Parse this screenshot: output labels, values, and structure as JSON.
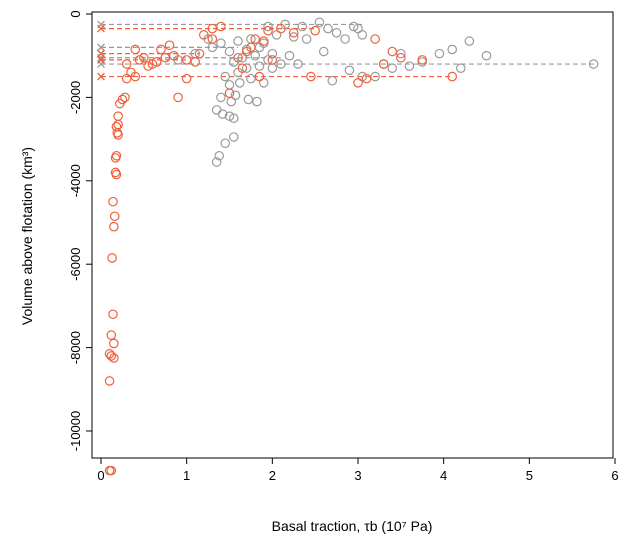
{
  "chart_data": {
    "type": "scatter",
    "xlabel": "Basal traction, τb (10⁷ Pa)",
    "ylabel": "Volume above flotation (km³)",
    "xlim": [
      0,
      6
    ],
    "ylim": [
      -11000,
      0
    ],
    "xticks": [
      "0",
      "1",
      "2",
      "3",
      "4",
      "5",
      "6"
    ],
    "yticks": [
      "0",
      "-2000",
      "-4000",
      "-6000",
      "-8000",
      "-10000"
    ],
    "grid": false,
    "legend": "none",
    "colors": {
      "orange": "#f0603a",
      "gray": "#9a9a9a",
      "gray_dark": "#6e6e6e"
    },
    "series": [
      {
        "color": "gray",
        "marker": "circle",
        "points": [
          [
            1.35,
            -3550
          ],
          [
            1.38,
            -3400
          ],
          [
            1.45,
            -3100
          ],
          [
            1.55,
            -2950
          ],
          [
            1.35,
            -2300
          ],
          [
            1.42,
            -2400
          ],
          [
            1.5,
            -2450
          ],
          [
            1.55,
            -2500
          ],
          [
            1.4,
            -2000
          ],
          [
            1.52,
            -2100
          ],
          [
            1.57,
            -1950
          ],
          [
            1.72,
            -2050
          ],
          [
            1.82,
            -2100
          ],
          [
            1.5,
            -1700
          ],
          [
            1.62,
            -1650
          ],
          [
            1.75,
            -1550
          ],
          [
            1.9,
            -1650
          ],
          [
            1.45,
            -1500
          ],
          [
            1.6,
            -1400
          ],
          [
            1.7,
            -1300
          ],
          [
            1.85,
            -1250
          ],
          [
            2.0,
            -1300
          ],
          [
            1.55,
            -1150
          ],
          [
            1.65,
            -1050
          ],
          [
            1.8,
            -1000
          ],
          [
            1.95,
            -1100
          ],
          [
            2.1,
            -1200
          ],
          [
            1.5,
            -900
          ],
          [
            1.7,
            -850
          ],
          [
            1.85,
            -800
          ],
          [
            2.0,
            -950
          ],
          [
            2.2,
            -1000
          ],
          [
            1.4,
            -700
          ],
          [
            1.6,
            -650
          ],
          [
            1.75,
            -600
          ],
          [
            1.9,
            -700
          ],
          [
            2.05,
            -500
          ],
          [
            2.25,
            -550
          ],
          [
            2.4,
            -600
          ],
          [
            1.95,
            -300
          ],
          [
            2.15,
            -250
          ],
          [
            2.35,
            -300
          ],
          [
            2.55,
            -200
          ],
          [
            2.65,
            -350
          ],
          [
            2.75,
            -450
          ],
          [
            2.95,
            -300
          ],
          [
            3.0,
            -350
          ],
          [
            2.6,
            -900
          ],
          [
            2.7,
            -1600
          ],
          [
            2.9,
            -1350
          ],
          [
            3.05,
            -1500
          ],
          [
            3.3,
            -1200
          ],
          [
            3.4,
            -1300
          ],
          [
            3.6,
            -1250
          ],
          [
            3.75,
            -1150
          ],
          [
            3.95,
            -950
          ],
          [
            4.1,
            -850
          ],
          [
            4.2,
            -1300
          ],
          [
            4.3,
            -650
          ],
          [
            4.5,
            -1000
          ],
          [
            5.75,
            -1200
          ],
          [
            3.2,
            -1500
          ],
          [
            2.85,
            -600
          ],
          [
            1.25,
            -600
          ],
          [
            1.3,
            -800
          ],
          [
            1.1,
            -950
          ],
          [
            2.3,
            -1200
          ],
          [
            3.5,
            -950
          ],
          [
            3.05,
            -500
          ],
          [
            0.9,
            -1100
          ]
        ]
      },
      {
        "color": "orange",
        "marker": "circle",
        "points": [
          [
            0.1,
            -10950
          ],
          [
            0.12,
            -10950
          ],
          [
            0.1,
            -8800
          ],
          [
            0.12,
            -8200
          ],
          [
            0.15,
            -8250
          ],
          [
            0.1,
            -8150
          ],
          [
            0.12,
            -7700
          ],
          [
            0.15,
            -7900
          ],
          [
            0.14,
            -7200
          ],
          [
            0.13,
            -5850
          ],
          [
            0.15,
            -5100
          ],
          [
            0.16,
            -4850
          ],
          [
            0.14,
            -4500
          ],
          [
            0.18,
            -3850
          ],
          [
            0.17,
            -3800
          ],
          [
            0.18,
            -3400
          ],
          [
            0.17,
            -3450
          ],
          [
            0.2,
            -2900
          ],
          [
            0.19,
            -2850
          ],
          [
            0.2,
            -2650
          ],
          [
            0.18,
            -2700
          ],
          [
            0.2,
            -2450
          ],
          [
            0.22,
            -2150
          ],
          [
            0.25,
            -2050
          ],
          [
            0.28,
            -2000
          ],
          [
            0.3,
            -1550
          ],
          [
            0.35,
            -1400
          ],
          [
            0.4,
            -1500
          ],
          [
            0.45,
            -1100
          ],
          [
            0.55,
            -1250
          ],
          [
            0.65,
            -1150
          ],
          [
            0.75,
            -1050
          ],
          [
            0.85,
            -1000
          ],
          [
            1.0,
            -1100
          ],
          [
            1.15,
            -950
          ],
          [
            0.6,
            -1200
          ],
          [
            0.7,
            -850
          ],
          [
            0.8,
            -750
          ],
          [
            0.9,
            -2000
          ],
          [
            1.0,
            -1550
          ],
          [
            1.1,
            -1150
          ],
          [
            1.2,
            -500
          ],
          [
            1.3,
            -350
          ],
          [
            1.4,
            -300
          ],
          [
            1.3,
            -600
          ],
          [
            1.5,
            -1900
          ],
          [
            1.6,
            -1050
          ],
          [
            1.7,
            -900
          ],
          [
            1.75,
            -800
          ],
          [
            1.8,
            -600
          ],
          [
            1.9,
            -650
          ],
          [
            2.0,
            -1100
          ],
          [
            1.95,
            -400
          ],
          [
            2.1,
            -350
          ],
          [
            2.25,
            -450
          ],
          [
            2.5,
            -400
          ],
          [
            2.45,
            -1500
          ],
          [
            3.0,
            -1650
          ],
          [
            3.1,
            -1550
          ],
          [
            3.2,
            -600
          ],
          [
            3.3,
            -1200
          ],
          [
            3.4,
            -900
          ],
          [
            3.5,
            -1050
          ],
          [
            3.75,
            -1100
          ],
          [
            4.1,
            -1500
          ],
          [
            1.85,
            -1500
          ],
          [
            1.65,
            -1300
          ],
          [
            0.4,
            -850
          ],
          [
            0.3,
            -1200
          ],
          [
            0.5,
            -1050
          ]
        ]
      }
    ],
    "reference_lines": [
      {
        "color": "gray",
        "y": -250,
        "x_end": 3.05
      },
      {
        "color": "gray",
        "y": -800,
        "x_end": 1.6
      },
      {
        "color": "gray",
        "y": -1050,
        "x_end": 2.1
      },
      {
        "color": "gray",
        "y": -1200,
        "x_end": 5.75
      },
      {
        "color": "orange",
        "y": -350,
        "x_end": 2.5
      },
      {
        "color": "orange",
        "y": -950,
        "x_end": 1.15
      },
      {
        "color": "orange",
        "y": -1100,
        "x_end": 1.0
      },
      {
        "color": "orange",
        "y": -1500,
        "x_end": 4.1
      }
    ]
  }
}
